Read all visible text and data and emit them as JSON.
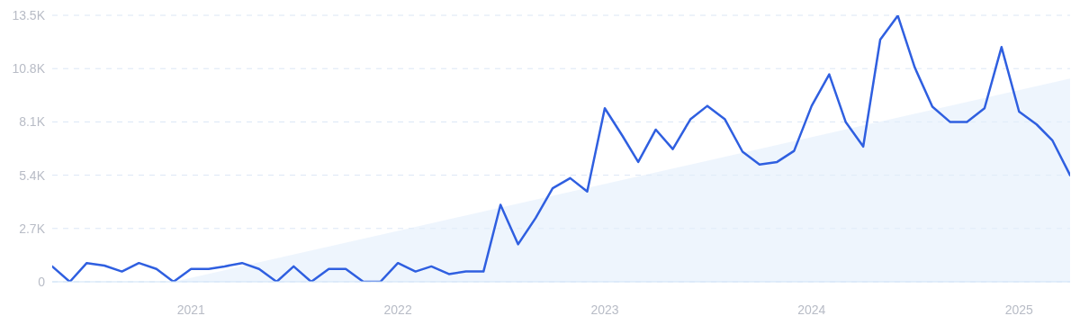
{
  "chart_data": {
    "type": "line",
    "x": [
      "2020-05",
      "2020-06",
      "2020-07",
      "2020-08",
      "2020-09",
      "2020-10",
      "2020-11",
      "2020-12",
      "2021-01",
      "2021-02",
      "2021-03",
      "2021-04",
      "2021-05",
      "2021-06",
      "2021-07",
      "2021-08",
      "2021-09",
      "2021-10",
      "2021-11",
      "2021-12",
      "2022-01",
      "2022-02",
      "2022-03",
      "2022-04",
      "2022-05",
      "2022-06",
      "2022-07",
      "2022-08",
      "2022-09",
      "2022-10",
      "2022-11",
      "2022-12",
      "2023-01",
      "2023-02",
      "2023-03",
      "2023-04",
      "2023-05",
      "2023-06",
      "2023-07",
      "2023-08",
      "2023-09",
      "2023-10",
      "2023-11",
      "2023-12",
      "2024-01",
      "2024-02",
      "2024-03",
      "2024-04",
      "2024-05",
      "2024-06",
      "2024-07",
      "2024-08",
      "2024-09",
      "2024-10",
      "2024-11",
      "2024-12",
      "2025-01",
      "2025-02",
      "2025-03",
      "2025-04"
    ],
    "series": [
      {
        "type": "area",
        "color": "#e3eefb",
        "x": [
          "2020-12",
          "2025-04"
        ],
        "values": [
          0,
          10300
        ]
      },
      {
        "color": "#2f5fe0",
        "values": [
          780,
          0,
          950,
          820,
          520,
          950,
          650,
          0,
          650,
          650,
          780,
          950,
          650,
          0,
          780,
          0,
          650,
          650,
          0,
          0,
          950,
          520,
          780,
          390,
          520,
          520,
          3900,
          1900,
          3230,
          4740,
          5250,
          4570,
          8790,
          7400,
          6070,
          7710,
          6720,
          8230,
          8910,
          8230,
          6590,
          5940,
          6070,
          6630,
          8910,
          10510,
          8100,
          6850,
          12270,
          13480,
          10850,
          8870,
          8100,
          8100,
          8790,
          11890,
          8620,
          7970,
          7150,
          5400
        ]
      }
    ],
    "xlim": [
      "2020-05",
      "2025-04"
    ],
    "xticks": [
      "2021",
      "2022",
      "2023",
      "2024",
      "2025"
    ],
    "ylim": [
      0,
      13500
    ],
    "yticks": [
      {
        "value": 0,
        "label": "0"
      },
      {
        "value": 2700,
        "label": "2.7K"
      },
      {
        "value": 5400,
        "label": "5.4K"
      },
      {
        "value": 8100,
        "label": "8.1K"
      },
      {
        "value": 10800,
        "label": "10.8K"
      },
      {
        "value": 13500,
        "label": "13.5K"
      }
    ],
    "grid": "y",
    "marker": "none",
    "line_style": "solid"
  }
}
